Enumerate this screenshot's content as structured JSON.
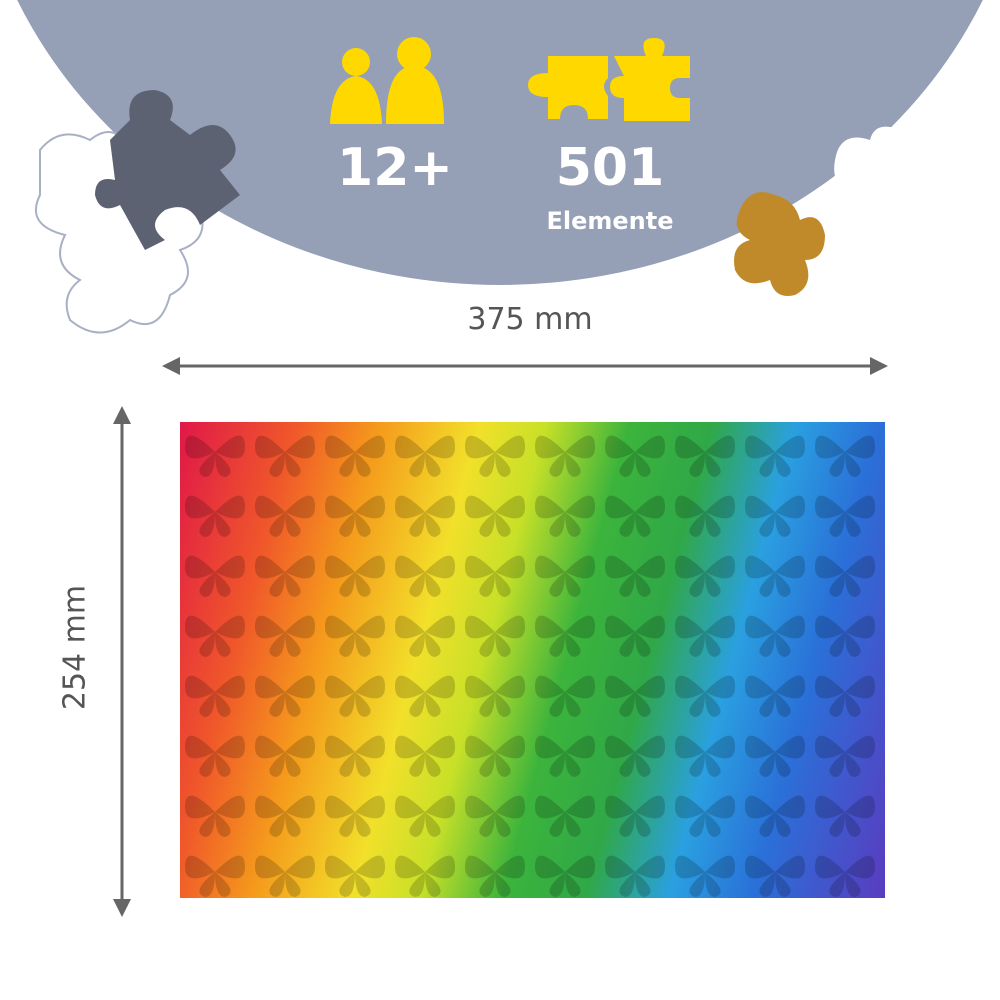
{
  "header": {
    "age": {
      "icon": "people-icon",
      "value": "12+"
    },
    "pieces": {
      "icon": "puzzle-pieces-icon",
      "value": "501",
      "label": "Elemente"
    }
  },
  "dimensions": {
    "width": "375 mm",
    "height": "254 mm"
  },
  "colors": {
    "banner": "#95a0b6",
    "accent": "#ffd800",
    "arrow": "#666666"
  }
}
